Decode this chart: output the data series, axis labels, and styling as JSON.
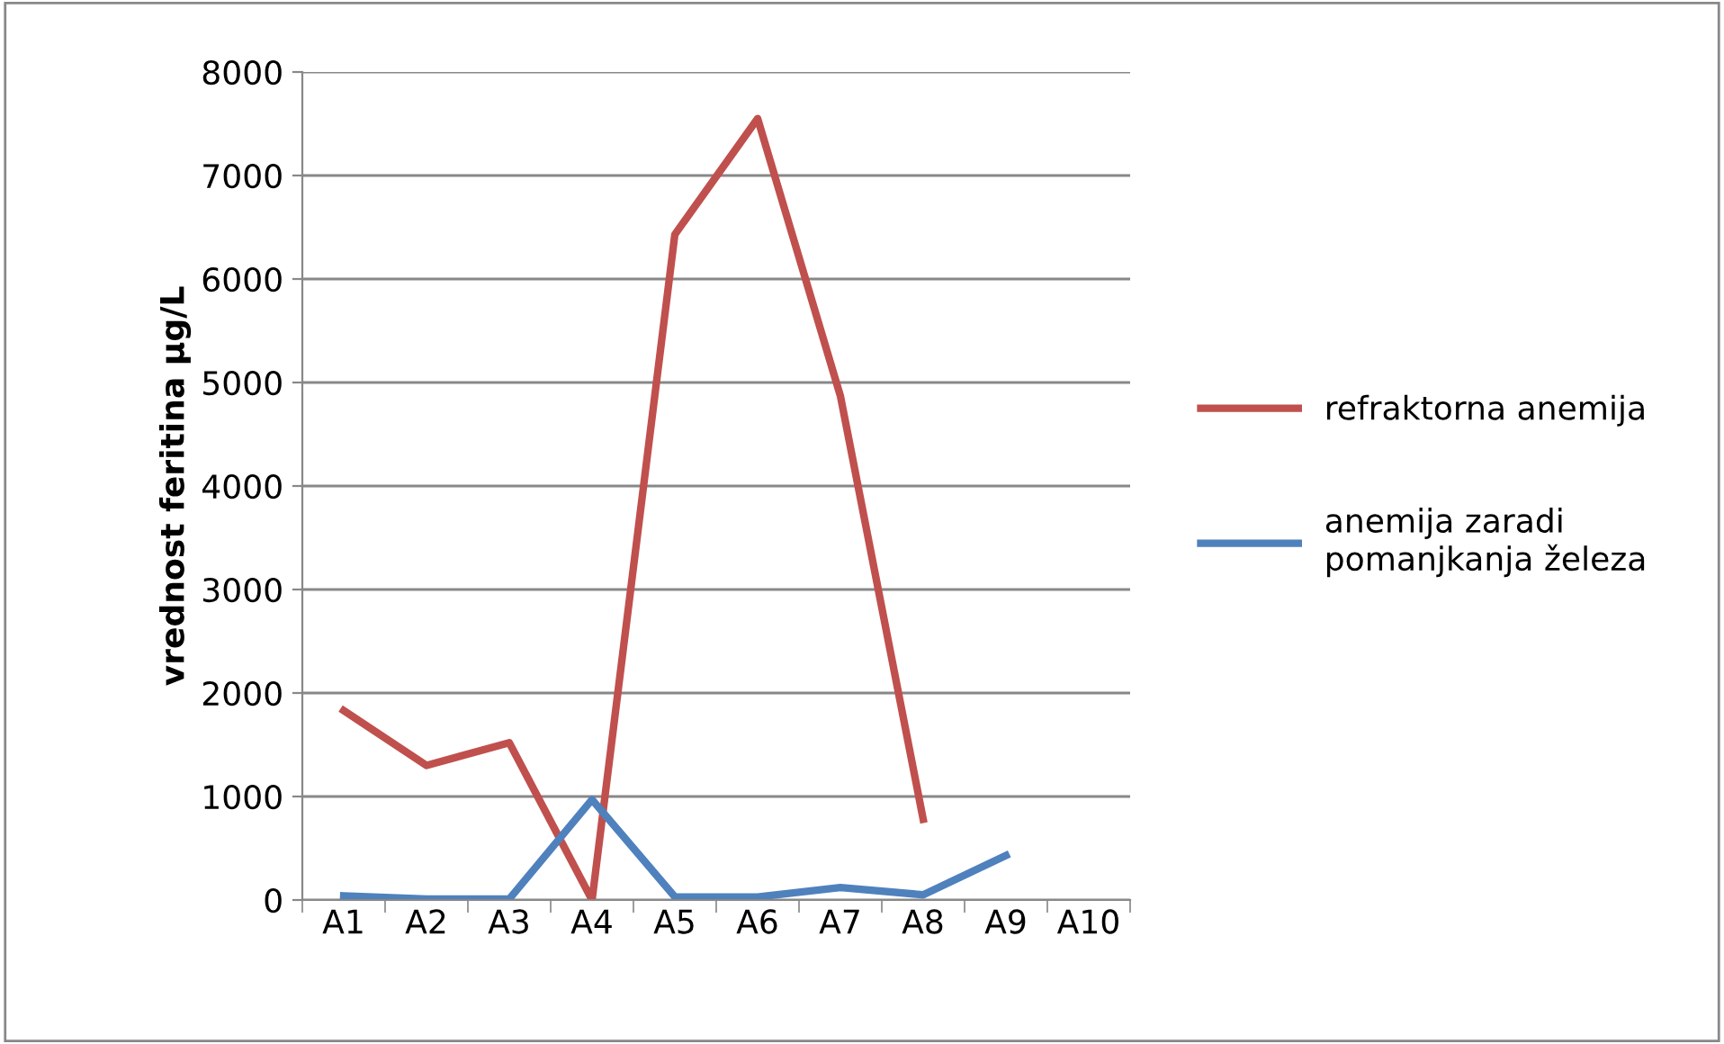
{
  "chart_data": {
    "type": "line",
    "ylabel": "vrednost feritina µg/L",
    "categories": [
      "A1",
      "A2",
      "A3",
      "A4",
      "A5",
      "A6",
      "A7",
      "A8",
      "A9",
      "A10"
    ],
    "series": [
      {
        "name": "refraktorna anemija",
        "color": "#c0504d",
        "values": [
          1830,
          1300,
          1520,
          0,
          6430,
          7550,
          4870,
          780,
          null,
          null
        ]
      },
      {
        "name": "anemija zaradi pomanjkanja železa",
        "color": "#4f81bd",
        "values": [
          40,
          10,
          10,
          970,
          30,
          30,
          120,
          50,
          430,
          null
        ]
      }
    ],
    "ylim": [
      0,
      8000
    ],
    "yticks": [
      0,
      1000,
      2000,
      3000,
      4000,
      5000,
      6000,
      7000,
      8000
    ],
    "grid": "y",
    "legend": "right",
    "marker": "none",
    "line_style": "solid"
  }
}
